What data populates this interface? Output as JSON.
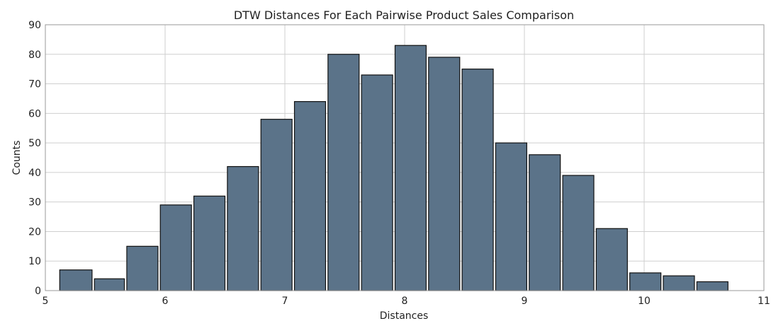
{
  "chart_data": {
    "type": "bar",
    "title": "DTW Distances For Each Pairwise Product Sales Comparison",
    "xlabel": "Distances",
    "ylabel": "Counts",
    "xlim": [
      5,
      11
    ],
    "ylim": [
      0,
      90
    ],
    "xticks": [
      5,
      6,
      7,
      8,
      9,
      10,
      11
    ],
    "yticks": [
      0,
      10,
      20,
      30,
      40,
      50,
      60,
      70,
      80,
      90
    ],
    "grid": true,
    "bar_color": "#5b7389",
    "bar_edge_color": "#111111",
    "grid_color": "#cfcfcf",
    "bins": [
      {
        "start": 5.12,
        "end": 5.39,
        "count": 7
      },
      {
        "start": 5.41,
        "end": 5.66,
        "count": 4
      },
      {
        "start": 5.68,
        "end": 5.94,
        "count": 15
      },
      {
        "start": 5.96,
        "end": 6.22,
        "count": 29
      },
      {
        "start": 6.24,
        "end": 6.5,
        "count": 32
      },
      {
        "start": 6.52,
        "end": 6.78,
        "count": 42
      },
      {
        "start": 6.8,
        "end": 7.06,
        "count": 58
      },
      {
        "start": 7.08,
        "end": 7.34,
        "count": 64
      },
      {
        "start": 7.36,
        "end": 7.62,
        "count": 80
      },
      {
        "start": 7.64,
        "end": 7.9,
        "count": 73
      },
      {
        "start": 7.92,
        "end": 8.18,
        "count": 83
      },
      {
        "start": 8.2,
        "end": 8.46,
        "count": 79
      },
      {
        "start": 8.48,
        "end": 8.74,
        "count": 75
      },
      {
        "start": 8.76,
        "end": 9.02,
        "count": 50
      },
      {
        "start": 9.04,
        "end": 9.3,
        "count": 46
      },
      {
        "start": 9.32,
        "end": 9.58,
        "count": 39
      },
      {
        "start": 9.6,
        "end": 9.86,
        "count": 21
      },
      {
        "start": 9.88,
        "end": 10.14,
        "count": 6
      },
      {
        "start": 10.16,
        "end": 10.42,
        "count": 5
      },
      {
        "start": 10.44,
        "end": 10.7,
        "count": 3
      }
    ]
  }
}
